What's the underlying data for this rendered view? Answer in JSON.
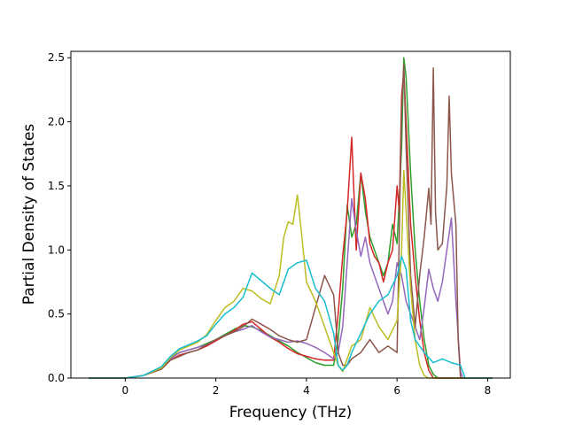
{
  "chart_data": {
    "type": "line",
    "title": "",
    "xlabel": "Frequency (THz)",
    "ylabel": "Partial Density of States",
    "xlim": [
      -1.2,
      8.5
    ],
    "ylim": [
      0.0,
      2.55
    ],
    "xticks": [
      0,
      2,
      4,
      6,
      8
    ],
    "xtick_labels": [
      "0",
      "2",
      "4",
      "6",
      "8"
    ],
    "yticks": [
      0.0,
      0.5,
      1.0,
      1.5,
      2.0,
      2.5
    ],
    "ytick_labels": [
      "0.0",
      "0.5",
      "1.0",
      "1.5",
      "2.0",
      "2.5"
    ],
    "grid": false,
    "legend": "none",
    "series": [
      {
        "color": "#2ca02c",
        "points": [
          [
            -0.8,
            0
          ],
          [
            0,
            0
          ],
          [
            0.4,
            0.02
          ],
          [
            0.8,
            0.08
          ],
          [
            1.0,
            0.16
          ],
          [
            1.2,
            0.2
          ],
          [
            1.4,
            0.22
          ],
          [
            1.6,
            0.24
          ],
          [
            1.8,
            0.27
          ],
          [
            2.0,
            0.3
          ],
          [
            2.2,
            0.34
          ],
          [
            2.4,
            0.38
          ],
          [
            2.6,
            0.41
          ],
          [
            2.8,
            0.4
          ],
          [
            3.0,
            0.37
          ],
          [
            3.2,
            0.33
          ],
          [
            3.4,
            0.29
          ],
          [
            3.6,
            0.25
          ],
          [
            3.8,
            0.2
          ],
          [
            4.0,
            0.16
          ],
          [
            4.2,
            0.12
          ],
          [
            4.4,
            0.1
          ],
          [
            4.6,
            0.1
          ],
          [
            4.7,
            0.3
          ],
          [
            4.8,
            0.7
          ],
          [
            4.9,
            1.35
          ],
          [
            5.0,
            1.1
          ],
          [
            5.1,
            1.2
          ],
          [
            5.2,
            1.6
          ],
          [
            5.3,
            1.3
          ],
          [
            5.4,
            1.1
          ],
          [
            5.5,
            1.0
          ],
          [
            5.6,
            0.9
          ],
          [
            5.7,
            0.8
          ],
          [
            5.8,
            0.9
          ],
          [
            5.9,
            1.2
          ],
          [
            6.0,
            1.05
          ],
          [
            6.05,
            1.4
          ],
          [
            6.1,
            1.8
          ],
          [
            6.15,
            2.5
          ],
          [
            6.2,
            2.35
          ],
          [
            6.3,
            1.6
          ],
          [
            6.4,
            1.0
          ],
          [
            6.5,
            0.6
          ],
          [
            6.6,
            0.3
          ],
          [
            6.7,
            0.1
          ],
          [
            6.8,
            0.03
          ],
          [
            6.9,
            0
          ],
          [
            8.1,
            0
          ]
        ]
      },
      {
        "color": "#d62728",
        "points": [
          [
            -0.8,
            0
          ],
          [
            0,
            0
          ],
          [
            0.4,
            0.02
          ],
          [
            0.8,
            0.07
          ],
          [
            1.0,
            0.14
          ],
          [
            1.2,
            0.18
          ],
          [
            1.4,
            0.2
          ],
          [
            1.6,
            0.22
          ],
          [
            1.8,
            0.25
          ],
          [
            2.0,
            0.29
          ],
          [
            2.2,
            0.33
          ],
          [
            2.4,
            0.37
          ],
          [
            2.6,
            0.42
          ],
          [
            2.8,
            0.44
          ],
          [
            3.0,
            0.38
          ],
          [
            3.2,
            0.32
          ],
          [
            3.4,
            0.28
          ],
          [
            3.6,
            0.23
          ],
          [
            3.8,
            0.19
          ],
          [
            4.0,
            0.17
          ],
          [
            4.2,
            0.15
          ],
          [
            4.4,
            0.14
          ],
          [
            4.6,
            0.14
          ],
          [
            4.7,
            0.5
          ],
          [
            4.8,
            0.95
          ],
          [
            4.9,
            1.3
          ],
          [
            5.0,
            1.88
          ],
          [
            5.1,
            1.0
          ],
          [
            5.2,
            1.6
          ],
          [
            5.3,
            1.4
          ],
          [
            5.4,
            1.05
          ],
          [
            5.5,
            0.95
          ],
          [
            5.6,
            0.9
          ],
          [
            5.7,
            0.75
          ],
          [
            5.8,
            0.9
          ],
          [
            5.9,
            1.0
          ],
          [
            6.0,
            1.5
          ],
          [
            6.05,
            1.3
          ],
          [
            6.1,
            2.2
          ],
          [
            6.15,
            2.4
          ],
          [
            6.2,
            2.0
          ],
          [
            6.3,
            1.2
          ],
          [
            6.4,
            0.8
          ],
          [
            6.5,
            0.45
          ],
          [
            6.6,
            0.2
          ],
          [
            6.7,
            0.06
          ],
          [
            6.8,
            0
          ],
          [
            8.1,
            0
          ]
        ]
      },
      {
        "color": "#9467bd",
        "points": [
          [
            -0.8,
            0
          ],
          [
            0,
            0
          ],
          [
            0.4,
            0.02
          ],
          [
            0.8,
            0.08
          ],
          [
            1.0,
            0.15
          ],
          [
            1.2,
            0.2
          ],
          [
            1.4,
            0.22
          ],
          [
            1.6,
            0.24
          ],
          [
            1.8,
            0.26
          ],
          [
            2.0,
            0.3
          ],
          [
            2.2,
            0.33
          ],
          [
            2.4,
            0.36
          ],
          [
            2.6,
            0.38
          ],
          [
            2.8,
            0.41
          ],
          [
            3.0,
            0.36
          ],
          [
            3.2,
            0.32
          ],
          [
            3.4,
            0.3
          ],
          [
            3.6,
            0.28
          ],
          [
            3.8,
            0.29
          ],
          [
            4.0,
            0.27
          ],
          [
            4.2,
            0.24
          ],
          [
            4.4,
            0.2
          ],
          [
            4.6,
            0.15
          ],
          [
            4.7,
            0.2
          ],
          [
            4.8,
            0.4
          ],
          [
            4.9,
            0.9
          ],
          [
            5.0,
            1.4
          ],
          [
            5.1,
            1.15
          ],
          [
            5.2,
            0.95
          ],
          [
            5.3,
            1.1
          ],
          [
            5.4,
            0.9
          ],
          [
            5.5,
            0.8
          ],
          [
            5.6,
            0.7
          ],
          [
            5.7,
            0.6
          ],
          [
            5.8,
            0.5
          ],
          [
            5.9,
            0.6
          ],
          [
            6.0,
            0.9
          ],
          [
            6.1,
            0.8
          ],
          [
            6.2,
            0.6
          ],
          [
            6.3,
            0.5
          ],
          [
            6.4,
            0.4
          ],
          [
            6.5,
            0.3
          ],
          [
            6.6,
            0.55
          ],
          [
            6.7,
            0.85
          ],
          [
            6.8,
            0.7
          ],
          [
            6.9,
            0.6
          ],
          [
            7.0,
            0.75
          ],
          [
            7.1,
            1.0
          ],
          [
            7.2,
            1.25
          ],
          [
            7.3,
            0.6
          ],
          [
            7.4,
            0.05
          ],
          [
            7.45,
            0
          ],
          [
            8.1,
            0
          ]
        ]
      },
      {
        "color": "#8c564b",
        "points": [
          [
            -0.8,
            0
          ],
          [
            0,
            0
          ],
          [
            0.4,
            0.02
          ],
          [
            0.8,
            0.07
          ],
          [
            1.0,
            0.14
          ],
          [
            1.2,
            0.17
          ],
          [
            1.4,
            0.2
          ],
          [
            1.6,
            0.22
          ],
          [
            1.8,
            0.26
          ],
          [
            2.0,
            0.3
          ],
          [
            2.2,
            0.33
          ],
          [
            2.4,
            0.36
          ],
          [
            2.6,
            0.4
          ],
          [
            2.8,
            0.46
          ],
          [
            3.0,
            0.42
          ],
          [
            3.2,
            0.38
          ],
          [
            3.4,
            0.33
          ],
          [
            3.6,
            0.3
          ],
          [
            3.8,
            0.28
          ],
          [
            4.0,
            0.3
          ],
          [
            4.2,
            0.55
          ],
          [
            4.4,
            0.8
          ],
          [
            4.6,
            0.65
          ],
          [
            4.7,
            0.2
          ],
          [
            4.8,
            0.1
          ],
          [
            4.9,
            0.1
          ],
          [
            5.0,
            0.15
          ],
          [
            5.2,
            0.2
          ],
          [
            5.4,
            0.3
          ],
          [
            5.6,
            0.2
          ],
          [
            5.8,
            0.25
          ],
          [
            6.0,
            0.2
          ],
          [
            6.1,
            2.1
          ],
          [
            6.15,
            2.45
          ],
          [
            6.2,
            1.8
          ],
          [
            6.3,
            0.8
          ],
          [
            6.4,
            0.4
          ],
          [
            6.5,
            0.8
          ],
          [
            6.6,
            1.1
          ],
          [
            6.7,
            1.48
          ],
          [
            6.75,
            1.2
          ],
          [
            6.8,
            2.42
          ],
          [
            6.85,
            1.3
          ],
          [
            6.9,
            1.0
          ],
          [
            7.0,
            1.05
          ],
          [
            7.1,
            1.5
          ],
          [
            7.15,
            2.2
          ],
          [
            7.2,
            1.6
          ],
          [
            7.3,
            1.2
          ],
          [
            7.35,
            0.3
          ],
          [
            7.4,
            0
          ],
          [
            8.1,
            0
          ]
        ]
      },
      {
        "color": "#bcbd22",
        "points": [
          [
            -0.8,
            0
          ],
          [
            0,
            0
          ],
          [
            0.4,
            0.02
          ],
          [
            0.8,
            0.08
          ],
          [
            1.0,
            0.16
          ],
          [
            1.2,
            0.22
          ],
          [
            1.4,
            0.25
          ],
          [
            1.6,
            0.28
          ],
          [
            1.8,
            0.34
          ],
          [
            2.0,
            0.45
          ],
          [
            2.2,
            0.55
          ],
          [
            2.4,
            0.6
          ],
          [
            2.6,
            0.7
          ],
          [
            2.8,
            0.68
          ],
          [
            3.0,
            0.62
          ],
          [
            3.2,
            0.58
          ],
          [
            3.4,
            0.8
          ],
          [
            3.5,
            1.1
          ],
          [
            3.6,
            1.22
          ],
          [
            3.7,
            1.2
          ],
          [
            3.8,
            1.43
          ],
          [
            3.9,
            1.1
          ],
          [
            4.0,
            0.75
          ],
          [
            4.2,
            0.6
          ],
          [
            4.4,
            0.4
          ],
          [
            4.6,
            0.2
          ],
          [
            4.7,
            0.1
          ],
          [
            4.8,
            0.05
          ],
          [
            4.9,
            0.15
          ],
          [
            5.0,
            0.25
          ],
          [
            5.2,
            0.3
          ],
          [
            5.4,
            0.55
          ],
          [
            5.6,
            0.4
          ],
          [
            5.8,
            0.3
          ],
          [
            6.0,
            0.45
          ],
          [
            6.1,
            1.0
          ],
          [
            6.15,
            1.62
          ],
          [
            6.2,
            1.3
          ],
          [
            6.3,
            0.7
          ],
          [
            6.4,
            0.3
          ],
          [
            6.5,
            0.1
          ],
          [
            6.6,
            0.02
          ],
          [
            6.7,
            0
          ],
          [
            8.1,
            0
          ]
        ]
      },
      {
        "color": "#17becf",
        "points": [
          [
            -0.8,
            0
          ],
          [
            0,
            0
          ],
          [
            0.4,
            0.02
          ],
          [
            0.8,
            0.09
          ],
          [
            1.0,
            0.17
          ],
          [
            1.2,
            0.23
          ],
          [
            1.4,
            0.26
          ],
          [
            1.6,
            0.29
          ],
          [
            1.8,
            0.33
          ],
          [
            2.0,
            0.42
          ],
          [
            2.2,
            0.5
          ],
          [
            2.4,
            0.55
          ],
          [
            2.6,
            0.63
          ],
          [
            2.8,
            0.82
          ],
          [
            3.0,
            0.76
          ],
          [
            3.2,
            0.7
          ],
          [
            3.4,
            0.65
          ],
          [
            3.6,
            0.85
          ],
          [
            3.8,
            0.9
          ],
          [
            4.0,
            0.92
          ],
          [
            4.2,
            0.7
          ],
          [
            4.4,
            0.6
          ],
          [
            4.6,
            0.35
          ],
          [
            4.7,
            0.1
          ],
          [
            4.8,
            0.06
          ],
          [
            4.9,
            0.1
          ],
          [
            5.0,
            0.2
          ],
          [
            5.2,
            0.35
          ],
          [
            5.4,
            0.5
          ],
          [
            5.6,
            0.6
          ],
          [
            5.8,
            0.65
          ],
          [
            6.0,
            0.8
          ],
          [
            6.1,
            0.95
          ],
          [
            6.2,
            0.85
          ],
          [
            6.3,
            0.45
          ],
          [
            6.4,
            0.3
          ],
          [
            6.5,
            0.25
          ],
          [
            6.6,
            0.2
          ],
          [
            6.8,
            0.12
          ],
          [
            7.0,
            0.15
          ],
          [
            7.2,
            0.12
          ],
          [
            7.4,
            0.1
          ],
          [
            7.5,
            0
          ],
          [
            8.1,
            0
          ]
        ]
      }
    ]
  }
}
